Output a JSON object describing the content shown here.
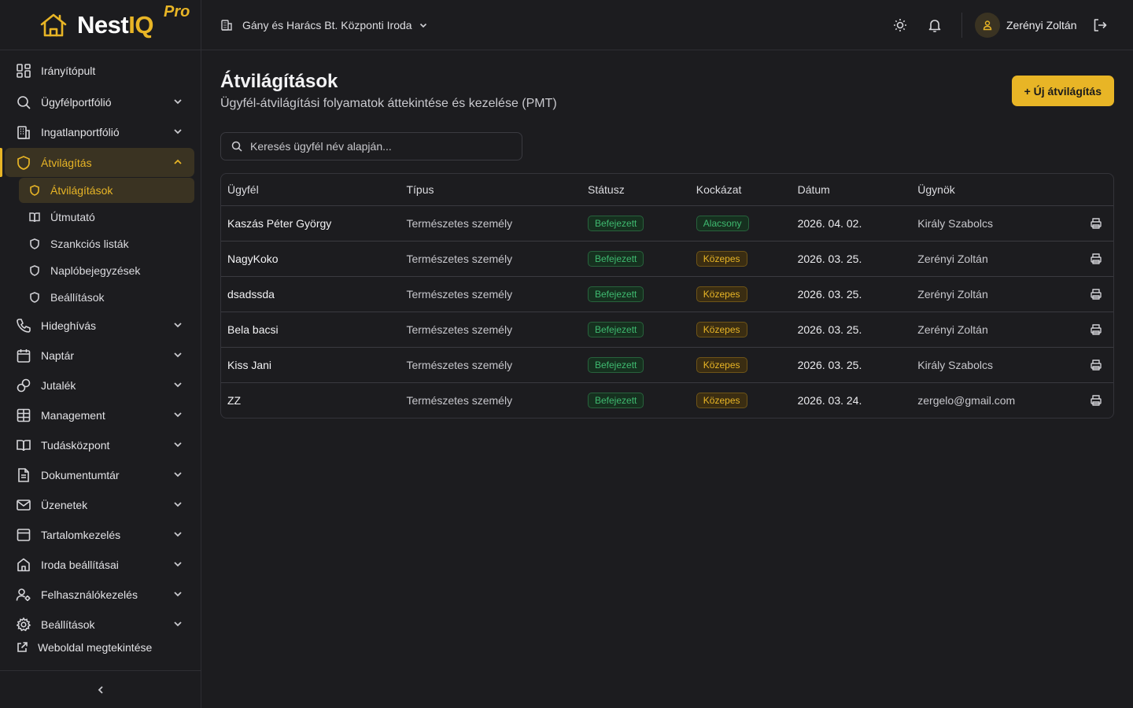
{
  "brand": {
    "name_part1": "Nest",
    "name_part2": "IQ",
    "edition": "Pro",
    "accent": "#e8b526"
  },
  "header": {
    "office": "Gány és Harács Bt. Központi Iroda",
    "user_name": "Zerényi Zoltán"
  },
  "sidebar": {
    "items": [
      {
        "label": "Irányítópult",
        "icon": "dashboard-icon"
      },
      {
        "label": "Ügyfélportfólió",
        "icon": "search-icon"
      },
      {
        "label": "Ingatlanportfólió",
        "icon": "building-icon"
      },
      {
        "label": "Átvilágítás",
        "icon": "shield-icon"
      },
      {
        "label": "Hideghívás",
        "icon": "phone-icon"
      },
      {
        "label": "Naptár",
        "icon": "calendar-icon"
      },
      {
        "label": "Jutalék",
        "icon": "link-icon"
      },
      {
        "label": "Management",
        "icon": "table-icon"
      },
      {
        "label": "Tudásközpont",
        "icon": "book-icon"
      },
      {
        "label": "Dokumentumtár",
        "icon": "document-icon"
      },
      {
        "label": "Üzenetek",
        "icon": "mail-icon"
      },
      {
        "label": "Tartalomkezelés",
        "icon": "layout-icon"
      },
      {
        "label": "Iroda beállításai",
        "icon": "home-icon"
      },
      {
        "label": "Felhasználókezelés",
        "icon": "users-icon"
      },
      {
        "label": "Beállítások",
        "icon": "gear-icon"
      }
    ],
    "sub_items": [
      {
        "label": "Átvilágítások",
        "icon": "shield-icon"
      },
      {
        "label": "Útmutató",
        "icon": "book-icon"
      },
      {
        "label": "Szankciós listák",
        "icon": "shield-icon"
      },
      {
        "label": "Naplóbejegyzések",
        "icon": "shield-icon"
      },
      {
        "label": "Beállítások",
        "icon": "shield-icon"
      }
    ],
    "website_link": "Weboldal megtekintése"
  },
  "page": {
    "title": "Átvilágítások",
    "subtitle": "Ügyfél-átvilágítási folyamatok áttekintése és kezelése (PMT)",
    "new_button": "+ Új átvilágítás",
    "search_placeholder": "Keresés ügyfél név alapján..."
  },
  "table": {
    "columns": [
      "Ügyfél",
      "Típus",
      "Státusz",
      "Kockázat",
      "Dátum",
      "Ügynök"
    ],
    "rows": [
      {
        "client": "Kaszás Péter György",
        "type": "Természetes személy",
        "status": "Befejezett",
        "risk": "Alacsony",
        "risk_level": "low",
        "date": "2026. 04. 02.",
        "agent": "Király Szabolcs"
      },
      {
        "client": "NagyKoko",
        "type": "Természetes személy",
        "status": "Befejezett",
        "risk": "Közepes",
        "risk_level": "mid",
        "date": "2026. 03. 25.",
        "agent": "Zerényi Zoltán"
      },
      {
        "client": "dsadssda",
        "type": "Természetes személy",
        "status": "Befejezett",
        "risk": "Közepes",
        "risk_level": "mid",
        "date": "2026. 03. 25.",
        "agent": "Zerényi Zoltán"
      },
      {
        "client": "Bela bacsi",
        "type": "Természetes személy",
        "status": "Befejezett",
        "risk": "Közepes",
        "risk_level": "mid",
        "date": "2026. 03. 25.",
        "agent": "Zerényi Zoltán"
      },
      {
        "client": "Kiss Jani",
        "type": "Természetes személy",
        "status": "Befejezett",
        "risk": "Közepes",
        "risk_level": "mid",
        "date": "2026. 03. 25.",
        "agent": "Király Szabolcs"
      },
      {
        "client": "ZZ",
        "type": "Természetes személy",
        "status": "Befejezett",
        "risk": "Közepes",
        "risk_level": "mid",
        "date": "2026. 03. 24.",
        "agent": "zergelo@gmail.com"
      }
    ]
  }
}
